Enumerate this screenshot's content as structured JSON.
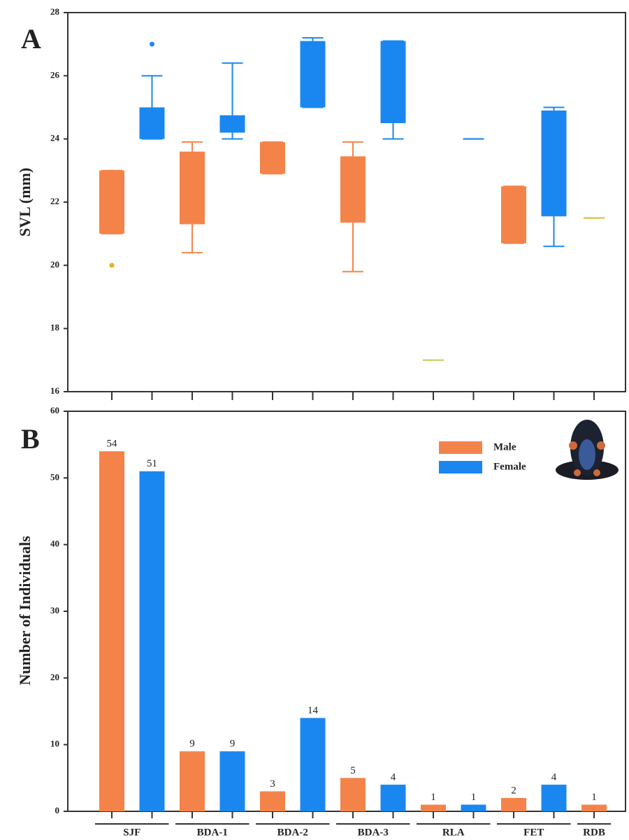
{
  "chart_data": [
    {
      "type": "box",
      "panel": "A",
      "ylabel": "SVL (mm)",
      "ylim": [
        16,
        28
      ],
      "yticks": [
        16,
        18,
        20,
        22,
        24,
        26,
        28
      ],
      "boxes": [
        {
          "color": "#f4834a",
          "low": 21,
          "q1": 21,
          "q3": 23,
          "high": 23,
          "outliers": [
            20
          ],
          "outlier_color": "#e8b020"
        },
        {
          "color": "#1a87f0",
          "low": 24,
          "q1": 24,
          "q3": 25,
          "high": 26,
          "outliers": [
            27
          ],
          "outlier_color": "#1a87f0"
        },
        {
          "color": "#f4834a",
          "low": 20.4,
          "q1": 21.3,
          "q3": 23.6,
          "high": 23.9
        },
        {
          "color": "#1a87f0",
          "low": 24,
          "q1": 24.2,
          "q3": 24.75,
          "high": 26.4
        },
        {
          "color": "#f4834a",
          "low": 22.9,
          "q1": 22.9,
          "q3": 23.9,
          "high": 23.9
        },
        {
          "color": "#1a87f0",
          "low": 25,
          "q1": 25,
          "q3": 27.1,
          "high": 27.2
        },
        {
          "color": "#f4834a",
          "low": 19.8,
          "q1": 21.35,
          "q3": 23.45,
          "high": 23.9
        },
        {
          "color": "#1a87f0",
          "low": 24,
          "q1": 24.5,
          "q3": 27.1,
          "high": 27.1
        },
        {
          "color": "#c8d060",
          "low": 17,
          "q1": 17,
          "q3": 17,
          "high": 17
        },
        {
          "color": "#1a87f0",
          "low": 24,
          "q1": 24,
          "q3": 24,
          "high": 24
        },
        {
          "color": "#f4834a",
          "low": 20.7,
          "q1": 20.7,
          "q3": 22.5,
          "high": 22.5
        },
        {
          "color": "#1a87f0",
          "low": 20.6,
          "q1": 21.55,
          "q3": 24.9,
          "high": 25
        },
        {
          "color": "#d8c040",
          "low": 21.5,
          "q1": 21.5,
          "q3": 21.5,
          "high": 21.5
        }
      ]
    },
    {
      "type": "bar",
      "panel": "B",
      "ylabel": "Number of Individuals",
      "categories": [
        "SJF",
        "BDA-1",
        "BDA-2",
        "BDA-3",
        "RLA",
        "FET",
        "RDB"
      ],
      "series": [
        {
          "name": "Male",
          "color": "#f4834a",
          "values": [
            54,
            9,
            3,
            5,
            1,
            2,
            1
          ]
        },
        {
          "name": "Female",
          "color": "#1a87f0",
          "values": [
            51,
            9,
            14,
            4,
            1,
            4,
            null
          ]
        }
      ],
      "ylim": [
        0,
        60
      ],
      "yticks": [
        0,
        10,
        20,
        30,
        40,
        50,
        60
      ],
      "legend": "upper right"
    }
  ]
}
